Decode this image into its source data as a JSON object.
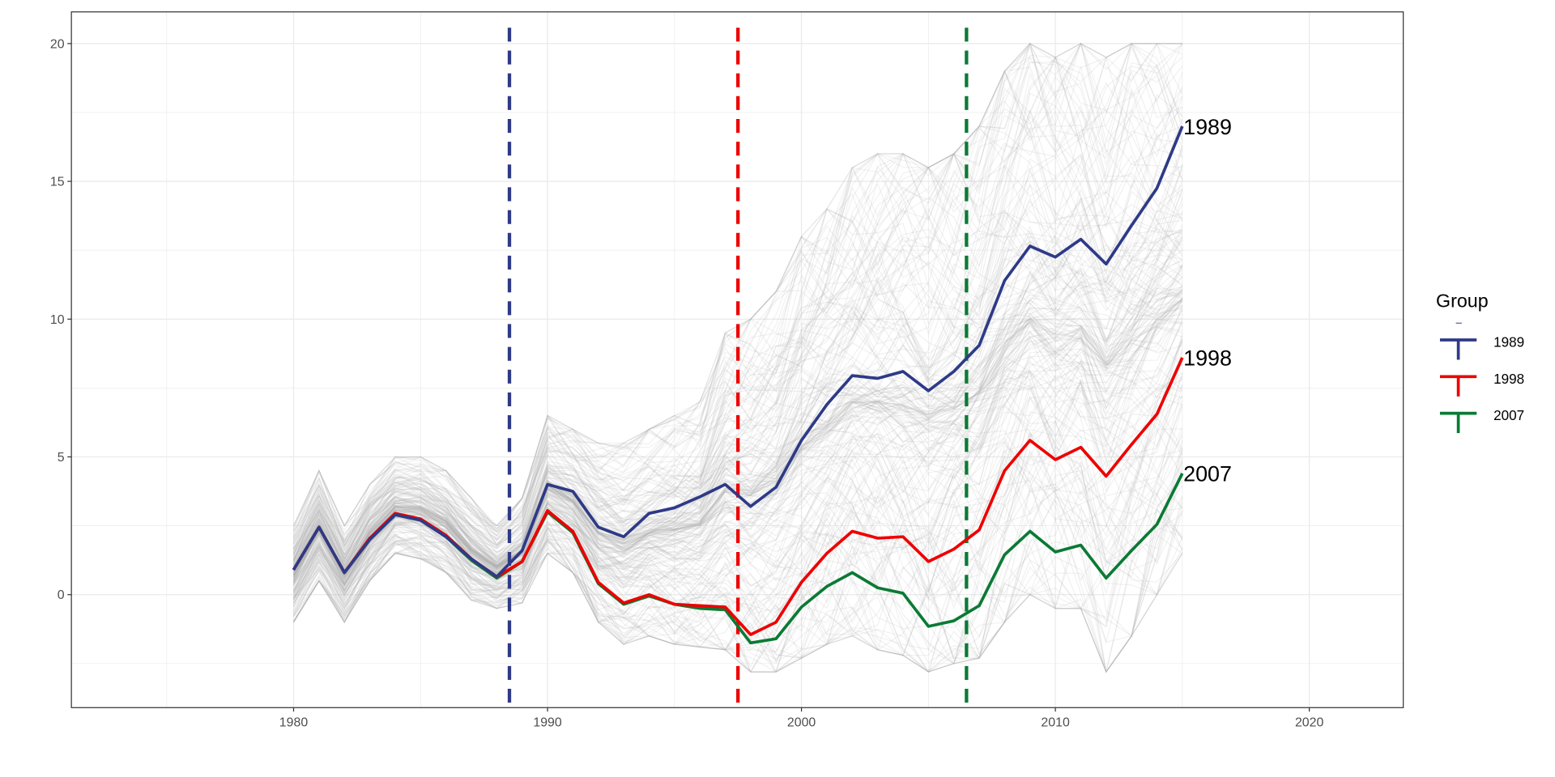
{
  "chart_data": {
    "type": "line",
    "title": "",
    "xlabel": "",
    "ylabel": "",
    "xlim": [
      1971.25,
      2023.7
    ],
    "ylim": [
      -4.1,
      21.15
    ],
    "x_ticks": [
      "1980",
      "1990",
      "2000",
      "2010",
      "2020"
    ],
    "y_ticks": [
      "0",
      "5",
      "10",
      "15",
      "20"
    ],
    "grid": true,
    "legend": {
      "title": "Group",
      "position": "right"
    },
    "x": [
      1980,
      1981,
      1982,
      1983,
      1984,
      1985,
      1986,
      1987,
      1988,
      1989,
      1990,
      1991,
      1992,
      1993,
      1994,
      1995,
      1996,
      1997,
      1998,
      1999,
      2000,
      2001,
      2002,
      2003,
      2004,
      2005,
      2006,
      2007,
      2008,
      2009,
      2010,
      2011,
      2012,
      2013,
      2014,
      2015
    ],
    "series": [
      {
        "name": "1989",
        "color": "#2E3A87",
        "values": [
          0.9,
          2.45,
          0.8,
          2.0,
          2.9,
          2.7,
          2.1,
          1.3,
          0.65,
          1.6,
          4.0,
          3.75,
          2.45,
          2.1,
          2.95,
          3.15,
          3.55,
          4.0,
          3.2,
          3.9,
          5.6,
          6.9,
          7.95,
          7.85,
          8.1,
          7.4,
          8.1,
          9.05,
          11.4,
          12.65,
          12.25,
          12.9,
          12.0,
          13.4,
          14.75,
          17.0
        ]
      },
      {
        "name": "1998",
        "color": "#EE0000",
        "values": [
          0.9,
          2.45,
          0.8,
          2.05,
          2.95,
          2.75,
          2.15,
          1.3,
          0.65,
          1.2,
          3.05,
          2.3,
          0.45,
          -0.3,
          0.0,
          -0.35,
          -0.4,
          -0.45,
          -1.45,
          -1.0,
          0.45,
          1.5,
          2.3,
          2.05,
          2.1,
          1.2,
          1.65,
          2.35,
          4.5,
          5.6,
          4.9,
          5.35,
          4.3,
          5.45,
          6.55,
          8.6
        ]
      },
      {
        "name": "2007",
        "color": "#0B7A34",
        "values": [
          0.9,
          2.45,
          0.8,
          2.0,
          2.9,
          2.7,
          2.1,
          1.25,
          0.6,
          1.2,
          3.0,
          2.25,
          0.4,
          -0.35,
          -0.05,
          -0.35,
          -0.5,
          -0.55,
          -1.75,
          -1.6,
          -0.45,
          0.3,
          0.8,
          0.25,
          0.05,
          -1.15,
          -0.95,
          -0.4,
          1.45,
          2.3,
          1.55,
          1.8,
          0.6,
          1.6,
          2.55,
          4.4
        ]
      }
    ],
    "vlines": [
      {
        "x": 1988.5,
        "color": "#2E3A87"
      },
      {
        "x": 1997.5,
        "color": "#EE0000"
      },
      {
        "x": 2006.5,
        "color": "#0B7A34"
      }
    ],
    "background_band": {
      "color": "#b3b3b3",
      "lower": [
        -1,
        0.5,
        -1,
        0.5,
        1.5,
        1.3,
        0.8,
        -0.2,
        -0.5,
        -0.3,
        1.5,
        0.8,
        -1,
        -1.8,
        -1.5,
        -1.8,
        -1.9,
        -2,
        -2.8,
        -2.8,
        -2.3,
        -1.8,
        -1.5,
        -2,
        -2.2,
        -2.8,
        -2.5,
        -2.3,
        -1,
        0,
        -0.5,
        -0.5,
        -2.8,
        -1.5,
        0,
        1.5
      ],
      "upper": [
        2.5,
        4.5,
        2.5,
        4,
        5,
        5,
        4.5,
        3.5,
        2.5,
        3.5,
        6.5,
        6,
        5.5,
        5.5,
        6,
        6.5,
        7,
        9.5,
        10,
        11,
        13,
        14,
        15.5,
        16,
        16,
        15.5,
        16,
        17,
        19,
        20,
        19.5,
        20,
        19.5,
        20,
        20,
        20
      ]
    }
  }
}
